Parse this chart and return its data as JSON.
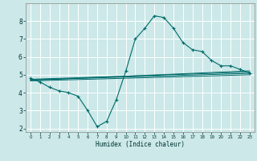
{
  "xlabel": "Humidex (Indice chaleur)",
  "xlim": [
    -0.5,
    23.5
  ],
  "ylim": [
    1.8,
    9.0
  ],
  "xticks": [
    0,
    1,
    2,
    3,
    4,
    5,
    6,
    7,
    8,
    9,
    10,
    11,
    12,
    13,
    14,
    15,
    16,
    17,
    18,
    19,
    20,
    21,
    22,
    23
  ],
  "yticks": [
    2,
    3,
    4,
    5,
    6,
    7,
    8
  ],
  "bg_color": "#cce8e8",
  "grid_color": "#b8d8d8",
  "line_color": "#006b6b",
  "curve_x": [
    0,
    1,
    2,
    3,
    4,
    5,
    6,
    7,
    8,
    9,
    10,
    11,
    12,
    13,
    14,
    15,
    16,
    17,
    18,
    19,
    20,
    21,
    22,
    23
  ],
  "curve_y": [
    4.8,
    4.6,
    4.3,
    4.1,
    4.0,
    3.8,
    3.0,
    2.1,
    2.4,
    3.6,
    5.2,
    7.0,
    7.6,
    8.3,
    8.2,
    7.6,
    6.8,
    6.4,
    6.3,
    5.8,
    5.5,
    5.5,
    5.3,
    5.1
  ],
  "straight_lines": [
    {
      "x": [
        0,
        23
      ],
      "y": [
        4.75,
        5.15
      ]
    },
    {
      "x": [
        0,
        23
      ],
      "y": [
        4.72,
        5.08
      ]
    },
    {
      "x": [
        0,
        23
      ],
      "y": [
        4.69,
        5.22
      ]
    },
    {
      "x": [
        0,
        23
      ],
      "y": [
        4.66,
        5.0
      ]
    }
  ]
}
